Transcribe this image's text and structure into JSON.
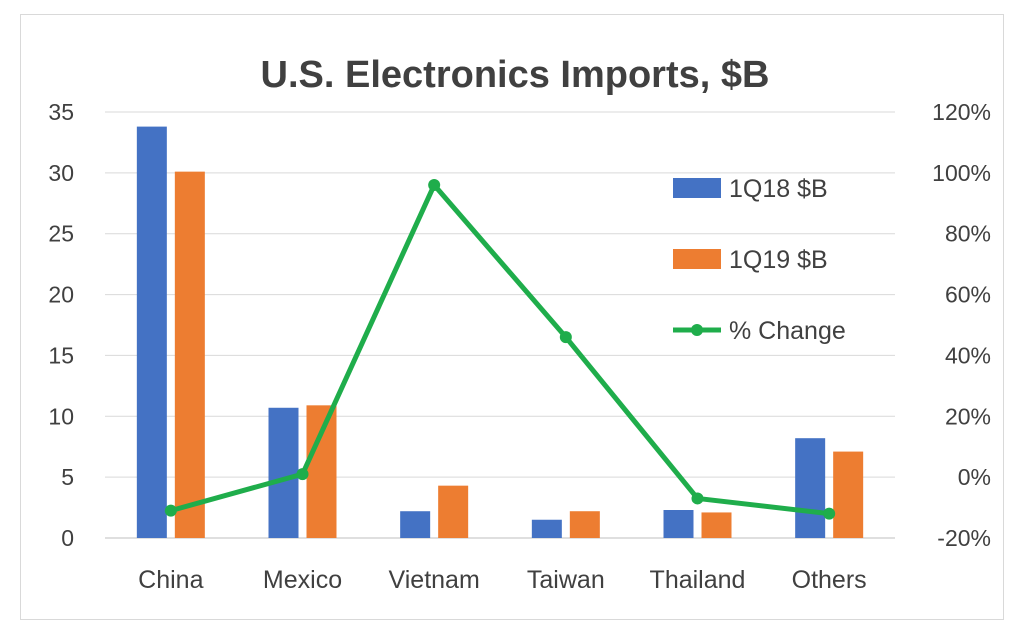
{
  "chart_data": {
    "type": "bar",
    "title": "U.S. Electronics Imports, $B",
    "categories": [
      "China",
      "Mexico",
      "Vietnam",
      "Taiwan",
      "Thailand",
      "Others"
    ],
    "series": [
      {
        "name": "1Q18 $B",
        "type": "bar",
        "axis": "left",
        "color": "#4472c4",
        "values": [
          33.8,
          10.7,
          2.2,
          1.5,
          2.3,
          8.2
        ]
      },
      {
        "name": "1Q19 $B",
        "type": "bar",
        "axis": "left",
        "color": "#ed7d31",
        "values": [
          30.1,
          10.9,
          4.3,
          2.2,
          2.1,
          7.1
        ]
      },
      {
        "name": "% Change",
        "type": "line",
        "axis": "right",
        "color": "#1fad4b",
        "values": [
          -11,
          1,
          96,
          46,
          -7,
          -12
        ]
      }
    ],
    "y_left": {
      "min": 0,
      "max": 35,
      "step": 5,
      "ticks": [
        "0",
        "5",
        "10",
        "15",
        "20",
        "25",
        "30",
        "35"
      ]
    },
    "y_right": {
      "min": -20,
      "max": 120,
      "step": 20,
      "ticks": [
        "-20%",
        "0%",
        "20%",
        "40%",
        "60%",
        "80%",
        "100%",
        "120%"
      ]
    },
    "grid": true,
    "legend_position": "top-right"
  }
}
